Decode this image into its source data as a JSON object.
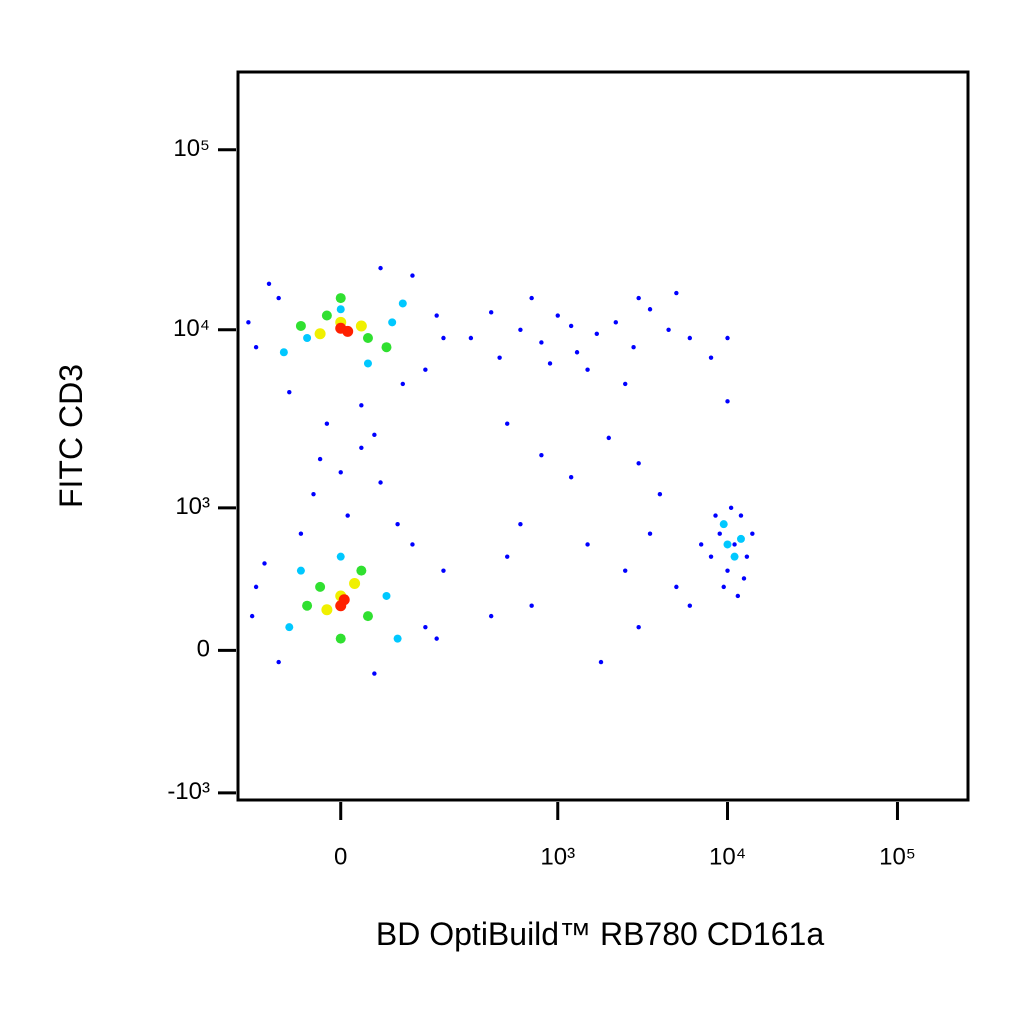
{
  "chart_data": {
    "type": "scatter",
    "x_label": "BD OptiBuild™ RB780 CD161a",
    "y_label": "FITC CD3",
    "xscale": "arcsinh",
    "yscale": "arcsinh",
    "xlim": [
      -200,
      260000
    ],
    "ylim": [
      -1100,
      270000
    ],
    "xticks": [
      0,
      {
        "value": 1000,
        "label": "10³"
      },
      {
        "value": 10000,
        "label": "10⁴"
      },
      {
        "value": 100000,
        "label": "10⁵"
      }
    ],
    "yticks": [
      {
        "value": -1000,
        "label": "-10³"
      },
      0,
      {
        "value": 1000,
        "label": "10³"
      },
      {
        "value": 10000,
        "label": "10⁴"
      },
      {
        "value": 100000,
        "label": "10⁵"
      }
    ],
    "series": [
      {
        "color": "#0000ff",
        "x": [
          -150,
          -100,
          120,
          150,
          -80,
          60,
          180,
          -170,
          100,
          200,
          -120,
          30,
          -20,
          30,
          0,
          -40,
          50,
          10,
          -30,
          60,
          -150,
          150,
          -100,
          120,
          -160,
          200,
          50,
          -60,
          180,
          -130,
          90,
          300,
          450,
          600,
          800,
          1000,
          1300,
          1700,
          2200,
          2800,
          3500,
          4500,
          6000,
          8000,
          700,
          1500,
          2500,
          400,
          900,
          3000,
          1200,
          5000,
          10000,
          10000,
          500,
          800,
          1200,
          2000,
          3000,
          4000,
          600,
          1500,
          2500,
          3500,
          5000,
          700,
          1800,
          3000,
          500,
          400,
          6000,
          8000,
          9000,
          10000,
          11000,
          12000,
          13000,
          9500,
          10500,
          7000,
          14000,
          11500,
          8500,
          12500
        ],
        "y": [
          8000,
          15000,
          20000,
          6000,
          4500,
          22000,
          12000,
          11000,
          5000,
          9000,
          18000,
          3800,
          3000,
          2200,
          1600,
          1200,
          2600,
          900,
          1900,
          1400,
          300,
          100,
          -50,
          600,
          150,
          400,
          -100,
          700,
          50,
          450,
          800,
          9000,
          7000,
          10000,
          8500,
          12000,
          7500,
          9500,
          11000,
          8000,
          13000,
          10000,
          9000,
          7000,
          15000,
          6000,
          5000,
          12500,
          6500,
          15000,
          10500,
          16000,
          9000,
          4000,
          3000,
          2000,
          1500,
          2500,
          1800,
          1200,
          800,
          600,
          400,
          700,
          300,
          200,
          -50,
          100,
          500,
          150,
          200,
          500,
          700,
          400,
          600,
          900,
          500,
          300,
          1000,
          600,
          700,
          250,
          900,
          350
        ]
      },
      {
        "color": "#00c8ff",
        "x": [
          0,
          -50,
          80,
          -90,
          100,
          40,
          -60,
          70,
          0,
          -80,
          90,
          10000,
          11000,
          9500,
          12000
        ],
        "y": [
          13000,
          9000,
          11000,
          7500,
          14000,
          6500,
          400,
          250,
          500,
          100,
          50,
          600,
          500,
          800,
          650
        ]
      },
      {
        "color": "#30e030",
        "x": [
          -20,
          40,
          -60,
          70,
          0,
          -30,
          40,
          -50,
          30,
          0
        ],
        "y": [
          12000,
          9000,
          10500,
          8000,
          15000,
          300,
          150,
          200,
          400,
          50
        ]
      },
      {
        "color": "#f0f000",
        "x": [
          0,
          -30,
          30,
          0,
          -20,
          20
        ],
        "y": [
          11000,
          9500,
          10500,
          250,
          180,
          320
        ]
      },
      {
        "color": "#ff2000",
        "x": [
          0,
          10,
          0,
          5
        ],
        "y": [
          10200,
          9800,
          200,
          230
        ]
      }
    ]
  }
}
